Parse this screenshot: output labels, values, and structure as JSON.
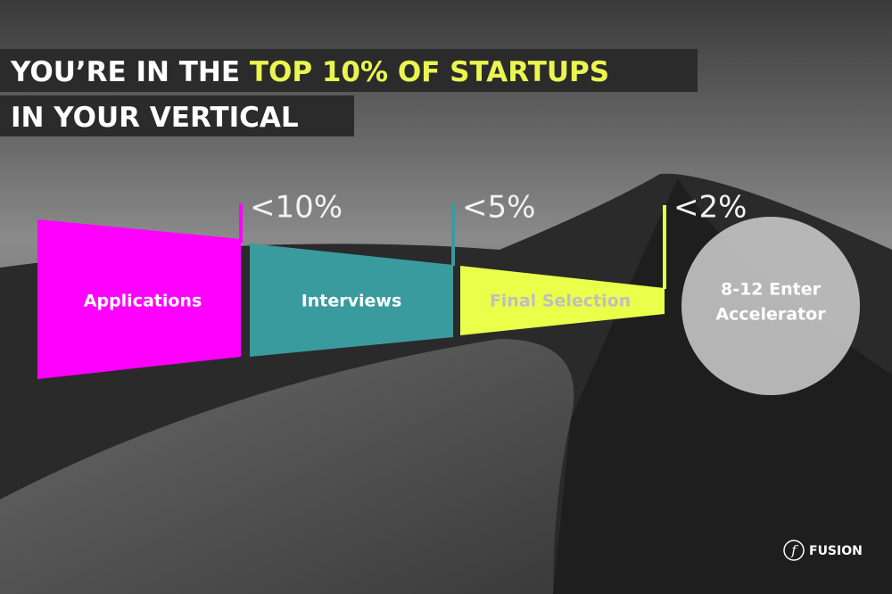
{
  "headline": {
    "line1_white": "YOU’RE IN THE ",
    "line1_highlight": "TOP 10% OF STARTUPS",
    "line2": "IN YOUR VERTICAL"
  },
  "stages": [
    {
      "label": "Applications",
      "percent": "<10%"
    },
    {
      "label": "Interviews",
      "percent": "<5%"
    },
    {
      "label": "Final Selection",
      "percent": "<2%"
    }
  ],
  "result": {
    "line1": "8-12 Enter",
    "line2": "Accelerator"
  },
  "logo": "FUSION"
}
